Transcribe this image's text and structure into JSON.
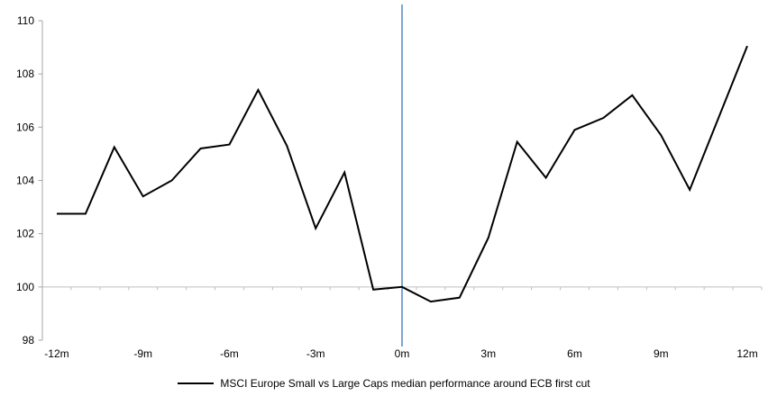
{
  "chart_data": {
    "type": "line",
    "title": "",
    "xlabel": "",
    "ylabel": "",
    "x": [
      -12,
      -11,
      -10,
      -9,
      -8,
      -7,
      -6,
      -5,
      -4,
      -3,
      -2,
      -1,
      0,
      1,
      2,
      3,
      4,
      5,
      6,
      7,
      8,
      9,
      10,
      11,
      12
    ],
    "series": [
      {
        "name": "MSCI Europe Small vs Large Caps median performance around ECB first cut",
        "color": "#000000",
        "values": [
          102.75,
          102.75,
          105.25,
          103.4,
          104.0,
          105.2,
          105.35,
          107.4,
          105.3,
          102.2,
          104.3,
          99.9,
          100.0,
          99.45,
          99.6,
          101.85,
          105.45,
          104.1,
          105.9,
          106.35,
          107.2,
          105.7,
          103.65,
          106.35,
          109.05
        ]
      }
    ],
    "ylim": [
      98,
      110
    ],
    "y_ticks": [
      110,
      108,
      106,
      104,
      102,
      100,
      98
    ],
    "y_tick_labels": [
      "110",
      "108",
      "106",
      "104",
      "102",
      "100",
      "98"
    ],
    "x_ticks": [
      -12,
      -9,
      -6,
      -3,
      0,
      3,
      6,
      9,
      12
    ],
    "x_tick_labels": [
      "-12m",
      "-9m",
      "-6m",
      "-3m",
      "0m",
      "3m",
      "6m",
      "9m",
      "12m"
    ],
    "baseline_value": 100,
    "event_line_x": 0,
    "legend_position": "bottom",
    "grid": "single horizontal line at 100",
    "colors": {
      "series": "#000000",
      "baseline": "#BFBFBF",
      "axis": "#A6A6A6",
      "event_line": "#7EA6CE",
      "text": "#000000",
      "background": "#FFFFFF"
    }
  }
}
